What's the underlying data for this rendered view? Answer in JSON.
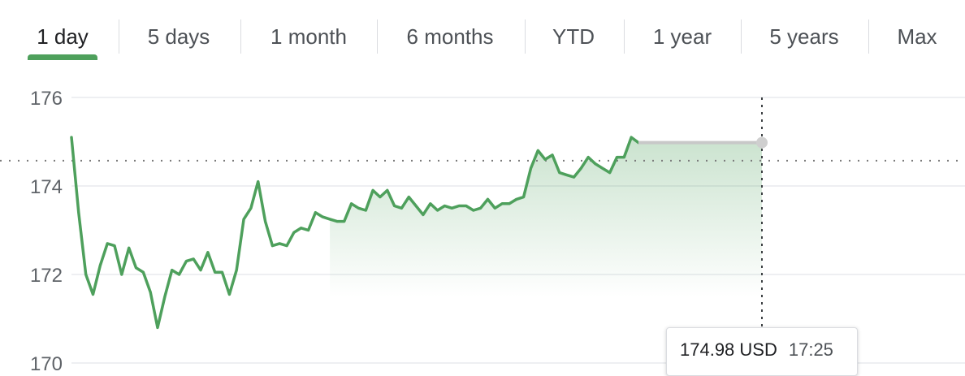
{
  "range_tabs": {
    "items": [
      {
        "label": "1 day",
        "active": true
      },
      {
        "label": "5 days",
        "active": false
      },
      {
        "label": "1 month",
        "active": false
      },
      {
        "label": "6 months",
        "active": false
      },
      {
        "label": "YTD",
        "active": false
      },
      {
        "label": "1 year",
        "active": false
      },
      {
        "label": "5 years",
        "active": false
      },
      {
        "label": "Max",
        "active": false
      }
    ]
  },
  "colors": {
    "line": "#4ea05c",
    "accent": "#4ea05c",
    "hover_line": "#c8c8c8",
    "grid": "#e8eaed",
    "label": "#5f6368"
  },
  "tooltip": {
    "price": "174.98 USD",
    "time": "17:25"
  },
  "chart_data": {
    "type": "line",
    "ylim": [
      170,
      176
    ],
    "yticks": [
      176,
      174,
      172,
      170
    ],
    "ytick_labels": [
      "176",
      "174",
      "172",
      "170"
    ],
    "reference_line": 174.57,
    "grid": true,
    "series": [
      {
        "values": [
          175.1,
          173.4,
          172.0,
          171.55,
          172.2,
          172.7,
          172.65,
          172.0,
          172.6,
          172.15,
          172.05,
          171.6,
          170.8,
          171.5,
          172.1,
          172.0,
          172.3,
          172.35,
          172.1,
          172.5,
          172.05,
          172.05,
          171.55,
          172.1,
          173.25,
          173.5,
          174.1,
          173.2,
          172.65,
          172.7,
          172.65,
          172.95,
          173.05,
          173.0,
          173.4,
          173.3,
          173.25,
          173.2,
          173.2,
          173.6,
          173.5,
          173.45,
          173.9,
          173.75,
          173.9,
          173.55,
          173.5,
          173.75,
          173.55,
          173.35,
          173.6,
          173.45,
          173.55,
          173.5,
          173.55,
          173.55,
          173.45,
          173.5,
          173.7,
          173.5,
          173.6,
          173.6,
          173.7,
          173.75,
          174.4,
          174.8,
          174.6,
          174.7,
          174.3,
          174.25,
          174.2,
          174.4,
          174.65,
          174.5,
          174.4,
          174.3,
          174.65,
          174.65,
          175.1,
          174.98
        ]
      }
    ],
    "hover_value": 174.98
  }
}
